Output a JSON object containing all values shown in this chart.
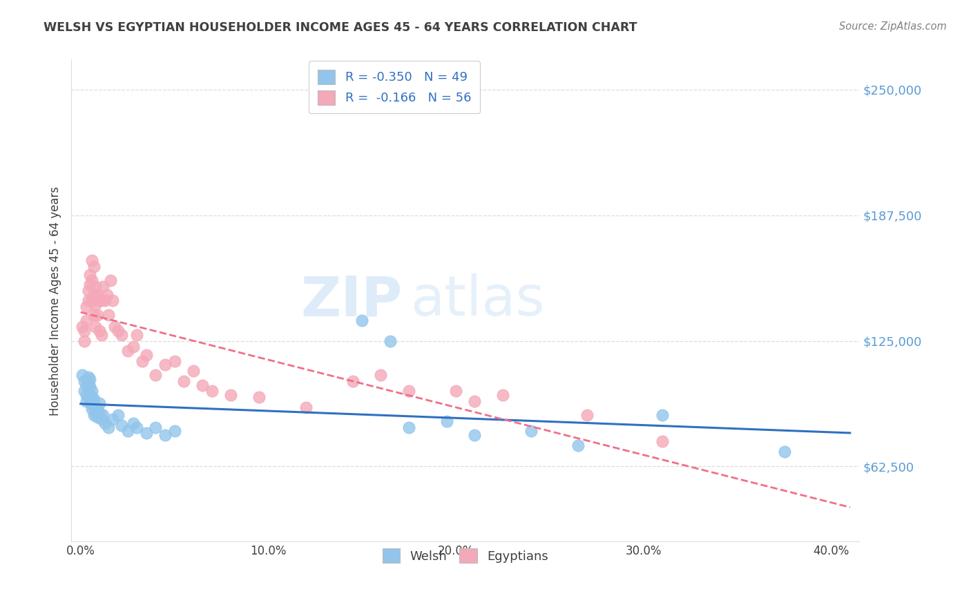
{
  "title": "WELSH VS EGYPTIAN HOUSEHOLDER INCOME AGES 45 - 64 YEARS CORRELATION CHART",
  "source": "Source: ZipAtlas.com",
  "xlabel_ticks": [
    "0.0%",
    "10.0%",
    "20.0%",
    "30.0%",
    "40.0%"
  ],
  "xlabel_tick_vals": [
    0.0,
    0.1,
    0.2,
    0.3,
    0.4
  ],
  "ylabel_ticks": [
    "$62,500",
    "$125,000",
    "$187,500",
    "$250,000"
  ],
  "ylabel_tick_vals": [
    62500,
    125000,
    187500,
    250000
  ],
  "ylabel_label": "Householder Income Ages 45 - 64 years",
  "xlim": [
    -0.005,
    0.415
  ],
  "ylim": [
    25000,
    265000
  ],
  "legend_welsh": "R = -0.350   N = 49",
  "legend_egyptians": "R =  -0.166   N = 56",
  "welsh_color": "#92C5EB",
  "egyptian_color": "#F4A8B8",
  "welsh_line_color": "#3070C0",
  "egyptian_line_color": "#F07088",
  "watermark_zip": "ZIP",
  "watermark_atlas": "atlas",
  "background_color": "#FFFFFF",
  "grid_color": "#DDDDDD",
  "title_color": "#404040",
  "source_color": "#808080",
  "ylabel_color": "#404040",
  "ytick_color": "#5B9BD5",
  "xtick_color": "#404040",
  "welsh_scatter_x": [
    0.001,
    0.002,
    0.002,
    0.003,
    0.003,
    0.003,
    0.004,
    0.004,
    0.004,
    0.005,
    0.005,
    0.005,
    0.005,
    0.006,
    0.006,
    0.006,
    0.006,
    0.007,
    0.007,
    0.007,
    0.008,
    0.008,
    0.009,
    0.009,
    0.01,
    0.01,
    0.011,
    0.012,
    0.013,
    0.015,
    0.017,
    0.02,
    0.022,
    0.025,
    0.028,
    0.03,
    0.035,
    0.04,
    0.045,
    0.05,
    0.15,
    0.165,
    0.175,
    0.195,
    0.21,
    0.24,
    0.265,
    0.31,
    0.375
  ],
  "welsh_scatter_y": [
    108000,
    105000,
    100000,
    103000,
    98000,
    95000,
    107000,
    104000,
    97000,
    106000,
    102000,
    98000,
    95000,
    100000,
    97000,
    94000,
    91000,
    96000,
    92000,
    88000,
    93000,
    89000,
    91000,
    87000,
    94000,
    89000,
    86000,
    88000,
    84000,
    82000,
    86000,
    88000,
    83000,
    80000,
    84000,
    82000,
    79000,
    82000,
    78000,
    80000,
    135000,
    125000,
    82000,
    85000,
    78000,
    80000,
    73000,
    88000,
    70000
  ],
  "egyptian_scatter_x": [
    0.001,
    0.002,
    0.002,
    0.003,
    0.003,
    0.004,
    0.004,
    0.005,
    0.005,
    0.006,
    0.006,
    0.006,
    0.007,
    0.007,
    0.007,
    0.008,
    0.008,
    0.008,
    0.009,
    0.009,
    0.01,
    0.01,
    0.011,
    0.011,
    0.012,
    0.013,
    0.014,
    0.015,
    0.016,
    0.017,
    0.018,
    0.02,
    0.022,
    0.025,
    0.028,
    0.03,
    0.033,
    0.035,
    0.04,
    0.045,
    0.05,
    0.055,
    0.06,
    0.065,
    0.07,
    0.08,
    0.095,
    0.12,
    0.145,
    0.16,
    0.175,
    0.2,
    0.21,
    0.225,
    0.27,
    0.31
  ],
  "egyptian_scatter_y": [
    132000,
    130000,
    125000,
    142000,
    135000,
    150000,
    145000,
    158000,
    153000,
    165000,
    155000,
    145000,
    162000,
    148000,
    138000,
    152000,
    143000,
    132000,
    148000,
    138000,
    145000,
    130000,
    145000,
    128000,
    152000,
    145000,
    148000,
    138000,
    155000,
    145000,
    132000,
    130000,
    128000,
    120000,
    122000,
    128000,
    115000,
    118000,
    108000,
    113000,
    115000,
    105000,
    110000,
    103000,
    100000,
    98000,
    97000,
    92000,
    105000,
    108000,
    100000,
    100000,
    95000,
    98000,
    88000,
    75000
  ]
}
